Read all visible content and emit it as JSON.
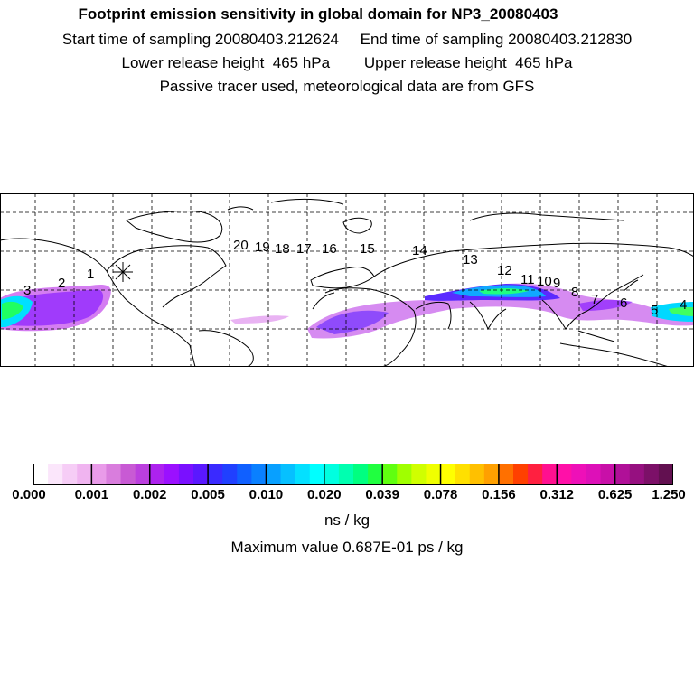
{
  "header": {
    "title": "Footprint emission sensitivity in global domain for NP3_20080403",
    "sampling_line": "Start time of sampling 20080403.212624     End time of sampling 20080403.212830",
    "release_line": "Lower release height  465 hPa        Upper release height  465 hPa",
    "tracer_line": "Passive tracer used, meteorological data are from GFS"
  },
  "map": {
    "trajectory_labels": [
      "1",
      "2",
      "3",
      "4",
      "5",
      "6",
      "7",
      "8",
      "9",
      "10",
      "11",
      "12",
      "13",
      "14",
      "15",
      "16",
      "17",
      "18",
      "19",
      "20"
    ],
    "release_marker": "asterisk-icon"
  },
  "colorbar": {
    "colors": [
      "#ffffff",
      "#fbe6fb",
      "#f6cdf6",
      "#f0b4f0",
      "#e99be9",
      "#d97ddd",
      "#c85ad4",
      "#bb3fde",
      "#ad22ee",
      "#9b10ff",
      "#7a10ff",
      "#5a18ff",
      "#3a2aff",
      "#2040ff",
      "#1060ff",
      "#0a80ff",
      "#08a0ff",
      "#06c0ff",
      "#04e0ff",
      "#00ffff",
      "#00ffe0",
      "#00ffb0",
      "#00ff80",
      "#20ff40",
      "#60ff10",
      "#a0ff00",
      "#d0ff00",
      "#f0ff00",
      "#ffff00",
      "#ffe000",
      "#ffc000",
      "#ffa000",
      "#ff7000",
      "#ff4000",
      "#ff2040",
      "#ff1090",
      "#ff10a8",
      "#ee10b8",
      "#dd10b8",
      "#c810a8",
      "#b01098",
      "#961080",
      "#7c1068",
      "#621050"
    ],
    "tick_labels": [
      "0.000",
      "0.001",
      "0.002",
      "0.005",
      "0.010",
      "0.020",
      "0.039",
      "0.078",
      "0.156",
      "0.312",
      "0.625",
      "1.250"
    ],
    "units": "ns / kg",
    "max_value_text": "Maximum value  0.687E-01 ps / kg"
  }
}
